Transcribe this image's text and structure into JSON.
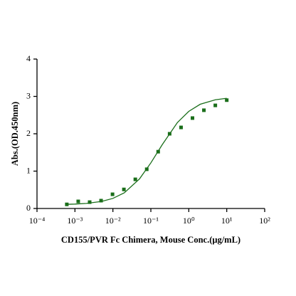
{
  "chart_data": {
    "type": "scatter",
    "x_label": "CD155/PVR Fc Chimera, Mouse Conc.(μg/mL)",
    "y_label": "Abs.(OD.450nm)",
    "xscale": "log",
    "xlim": [
      0.0001,
      100
    ],
    "ylim": [
      0,
      4
    ],
    "xticks": [
      {
        "value": 0.0001,
        "label": "10⁻⁴"
      },
      {
        "value": 0.001,
        "label": "10⁻³"
      },
      {
        "value": 0.01,
        "label": "10⁻²"
      },
      {
        "value": 0.1,
        "label": "10⁻¹"
      },
      {
        "value": 1,
        "label": "10⁰"
      },
      {
        "value": 10,
        "label": "10¹"
      },
      {
        "value": 100,
        "label": "10²"
      }
    ],
    "yticks": [
      0,
      1,
      2,
      3,
      4
    ],
    "series": [
      {
        "type": "scatter",
        "color": "#1a6e1a",
        "x": [
          0.00061,
          0.00122,
          0.00244,
          0.00488,
          0.00977,
          0.0195,
          0.039,
          0.078,
          0.156,
          0.3125,
          0.625,
          1.25,
          2.5,
          5,
          10
        ],
        "values": [
          0.11,
          0.19,
          0.17,
          0.21,
          0.38,
          0.51,
          0.78,
          1.05,
          1.52,
          2.0,
          2.17,
          2.42,
          2.63,
          2.76,
          2.9
        ]
      },
      {
        "type": "line",
        "color": "#1a6e1a",
        "x": [
          0.0006,
          0.001,
          0.002,
          0.005,
          0.01,
          0.02,
          0.05,
          0.1,
          0.2,
          0.5,
          1,
          2,
          5,
          10
        ],
        "values": [
          0.111,
          0.118,
          0.136,
          0.188,
          0.27,
          0.42,
          0.79,
          1.22,
          1.71,
          2.3,
          2.6,
          2.79,
          2.91,
          2.95
        ]
      }
    ]
  }
}
